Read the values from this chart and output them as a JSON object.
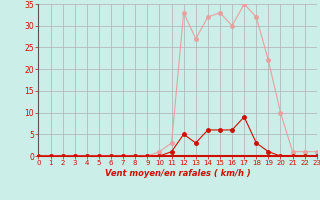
{
  "title": "",
  "xlabel": "Vent moyen/en rafales ( km/h )",
  "ylabel": "",
  "bg_color": "#cceee8",
  "grid_color": "#b0b0b0",
  "xmin": 0,
  "xmax": 23,
  "ymin": 0,
  "ymax": 35,
  "yticks": [
    0,
    5,
    10,
    15,
    20,
    25,
    30,
    35
  ],
  "xticks": [
    0,
    1,
    2,
    3,
    4,
    5,
    6,
    7,
    8,
    9,
    10,
    11,
    12,
    13,
    14,
    15,
    16,
    17,
    18,
    19,
    20,
    21,
    22,
    23
  ],
  "rafales_x": [
    0,
    1,
    2,
    3,
    4,
    5,
    6,
    7,
    8,
    9,
    10,
    11,
    12,
    13,
    14,
    15,
    16,
    17,
    18,
    19,
    20,
    21,
    22,
    23
  ],
  "rafales_y": [
    0,
    0,
    0,
    0,
    0,
    0,
    0,
    0,
    0,
    0,
    1,
    3,
    33,
    27,
    32,
    33,
    30,
    35,
    32,
    22,
    10,
    1,
    1,
    1
  ],
  "moyen_x": [
    0,
    1,
    2,
    3,
    4,
    5,
    6,
    7,
    8,
    9,
    10,
    11,
    12,
    13,
    14,
    15,
    16,
    17,
    18,
    19,
    20,
    21,
    22,
    23
  ],
  "moyen_y": [
    0,
    0,
    0,
    0,
    0,
    0,
    0,
    0,
    0,
    0,
    0,
    1,
    5,
    3,
    6,
    6,
    6,
    9,
    3,
    1,
    0,
    0,
    0,
    0
  ],
  "rafales_color": "#e8a0a0",
  "moyen_color": "#cc1100",
  "marker_size": 2.5,
  "line_width": 0.8,
  "tick_color": "#cc1100",
  "spine_left_color": "#555555",
  "spine_bottom_color": "#cc1100"
}
